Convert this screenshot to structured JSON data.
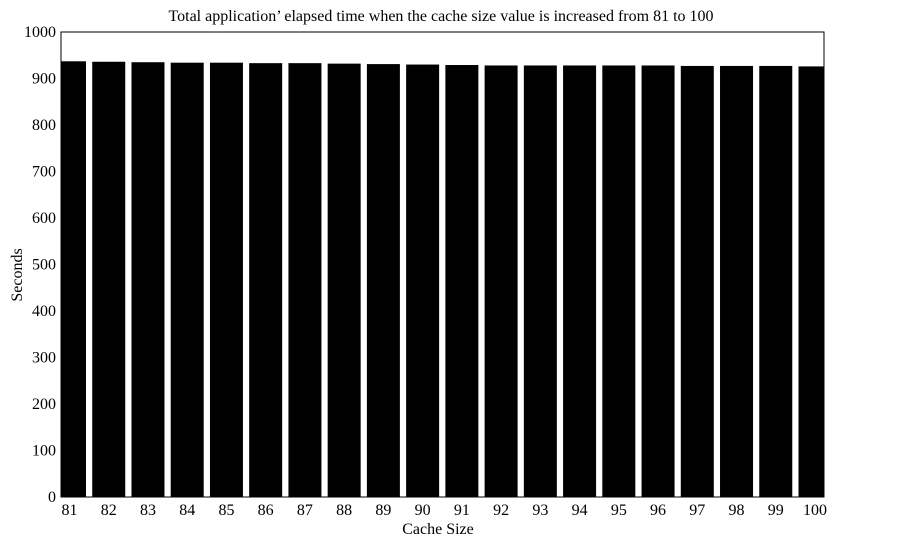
{
  "chart_data": {
    "type": "bar",
    "title": "Total application’ elapsed time when the cache size value is increased from 81 to 100",
    "xlabel": "Cache Size",
    "ylabel": "Seconds",
    "ylim": [
      0,
      1000
    ],
    "yticks": [
      0,
      100,
      200,
      300,
      400,
      500,
      600,
      700,
      800,
      900,
      1000
    ],
    "categories": [
      "81",
      "82",
      "83",
      "84",
      "85",
      "86",
      "87",
      "88",
      "89",
      "90",
      "91",
      "92",
      "93",
      "94",
      "95",
      "96",
      "97",
      "98",
      "99",
      "100"
    ],
    "values": [
      937,
      936,
      935,
      934,
      934,
      933,
      933,
      932,
      931,
      930,
      929,
      928,
      928,
      928,
      928,
      928,
      927,
      927,
      927,
      926
    ],
    "bar_color": "#000000",
    "grid": false
  }
}
